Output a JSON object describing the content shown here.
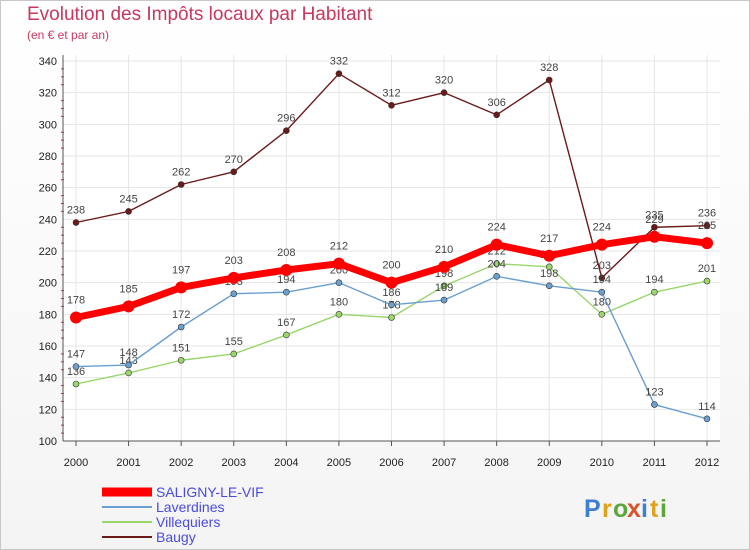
{
  "header": {
    "title": "Evolution des Impôts locaux par Habitant",
    "subtitle": "(en € et par an)"
  },
  "brand": {
    "letters": [
      "P",
      "r",
      "o",
      "x",
      "i",
      "t",
      "i"
    ],
    "colors": [
      "#3f7fd1",
      "#e0a11b",
      "#5da63a",
      "#d9542b",
      "#3f7fd1",
      "#e0a11b",
      "#5da63a"
    ]
  },
  "chart_data": {
    "type": "line",
    "title": "Evolution des Impôts locaux par Habitant",
    "subtitle": "(en € et par an)",
    "xlabel": "",
    "ylabel": "",
    "categories": [
      "2000",
      "2001",
      "2002",
      "2003",
      "2004",
      "2005",
      "2006",
      "2007",
      "2008",
      "2009",
      "2010",
      "2011",
      "2012"
    ],
    "ylim": [
      100,
      340
    ],
    "yticks": [
      100,
      120,
      140,
      160,
      180,
      200,
      220,
      240,
      260,
      280,
      300,
      320,
      340
    ],
    "grid": true,
    "legend_position": "bottom-left",
    "series": [
      {
        "name": "Baugy",
        "color": "#6b1a1a",
        "values": [
          238,
          245,
          262,
          270,
          296,
          332,
          312,
          320,
          306,
          328,
          203,
          235,
          236
        ]
      },
      {
        "name": "Villequiers",
        "color": "#99d66b",
        "values": [
          136,
          143,
          151,
          155,
          167,
          180,
          178,
          198,
          212,
          210,
          180,
          194,
          201
        ]
      },
      {
        "name": "Laverdines",
        "color": "#6a9fd0",
        "values": [
          147,
          148,
          172,
          193,
          194,
          200,
          186,
          189,
          204,
          198,
          194,
          123,
          114
        ]
      },
      {
        "name": "SALIGNY-LE-VIF",
        "color": "#ff0000",
        "values": [
          178,
          185,
          197,
          203,
          208,
          212,
          200,
          210,
          224,
          217,
          224,
          229,
          225
        ]
      }
    ],
    "legend_order": [
      "SALIGNY-LE-VIF",
      "Laverdines",
      "Villequiers",
      "Baugy"
    ]
  }
}
